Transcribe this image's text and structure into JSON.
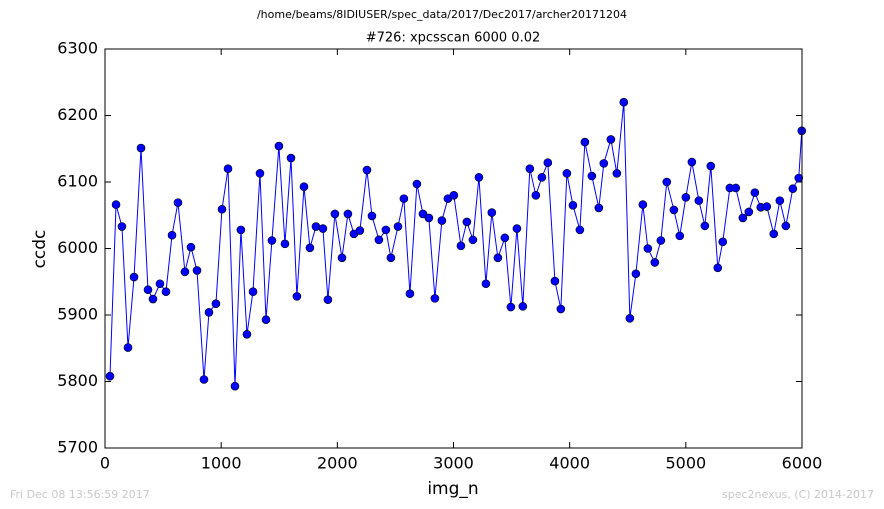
{
  "chart_data": {
    "type": "line",
    "file_path": "/home/beams/8IDIUSER/spec_data/2017/Dec2017/archer20171204",
    "title": "#726: xpcsscan 6000 0.02",
    "xlabel": "img_n",
    "ylabel": "ccdc",
    "footer_left": "Fri Dec 08 13:56:59 2017",
    "footer_right": "spec2nexus, (C) 2014-2017",
    "xlim": [
      0,
      6000
    ],
    "xticks": [
      0,
      1000,
      2000,
      3000,
      4000,
      5000,
      6000
    ],
    "ylim": [
      5700,
      6300
    ],
    "yticks": [
      5700,
      5800,
      5900,
      6000,
      6100,
      6200,
      6300
    ],
    "color": "#0000ff",
    "x": [
      43,
      95,
      146,
      198,
      250,
      310,
      370,
      413,
      473,
      525,
      577,
      628,
      688,
      740,
      792,
      852,
      895,
      955,
      1007,
      1059,
      1119,
      1170,
      1222,
      1274,
      1334,
      1386,
      1437,
      1497,
      1549,
      1601,
      1652,
      1713,
      1764,
      1816,
      1876,
      1919,
      1979,
      2040,
      2091,
      2143,
      2194,
      2255,
      2298,
      2358,
      2418,
      2461,
      2522,
      2573,
      2625,
      2685,
      2737,
      2788,
      2840,
      2900,
      2952,
      3003,
      3064,
      3115,
      3167,
      3219,
      3279,
      3330,
      3382,
      3442,
      3494,
      3546,
      3597,
      3657,
      3709,
      3761,
      3812,
      3873,
      3924,
      3976,
      4028,
      4088,
      4131,
      4191,
      4251,
      4294,
      4355,
      4406,
      4466,
      4518,
      4570,
      4630,
      4673,
      4733,
      4785,
      4836,
      4897,
      4948,
      5000,
      5052,
      5112,
      5164,
      5215,
      5275,
      5318,
      5379,
      5430,
      5491,
      5542,
      5594,
      5645,
      5697,
      5757,
      5809,
      5861,
      5921,
      5972,
      5998
    ],
    "values": [
      5808,
      6066,
      6033,
      5851,
      5957,
      6151,
      5938,
      5924,
      5947,
      5935,
      6020,
      6069,
      5965,
      6002,
      5967,
      5803,
      5904,
      5917,
      6059,
      6120,
      5793,
      6028,
      5871,
      5935,
      6113,
      5893,
      6012,
      6154,
      6007,
      6136,
      5928,
      6093,
      6001,
      6033,
      6030,
      5923,
      6052,
      5986,
      6052,
      6022,
      6027,
      6118,
      6049,
      6013,
      6028,
      5986,
      6033,
      6075,
      5932,
      6097,
      6052,
      6046,
      5925,
      6042,
      6075,
      6080,
      6004,
      6040,
      6013,
      6107,
      5947,
      6054,
      5986,
      6016,
      5912,
      6030,
      5913,
      6120,
      6080,
      6107,
      6129,
      5951,
      5909,
      6113,
      6065,
      6028,
      6160,
      6109,
      6061,
      6128,
      6164,
      6113,
      6220,
      5895,
      5962,
      6066,
      6000,
      5979,
      6012,
      6100,
      6058,
      6019,
      6077,
      6130,
      6072,
      6034,
      6124,
      5971,
      6010,
      6091,
      6091,
      6046,
      6055,
      6084,
      6062,
      6063,
      6022,
      6072,
      6034,
      6090,
      6106,
      6177
    ]
  }
}
